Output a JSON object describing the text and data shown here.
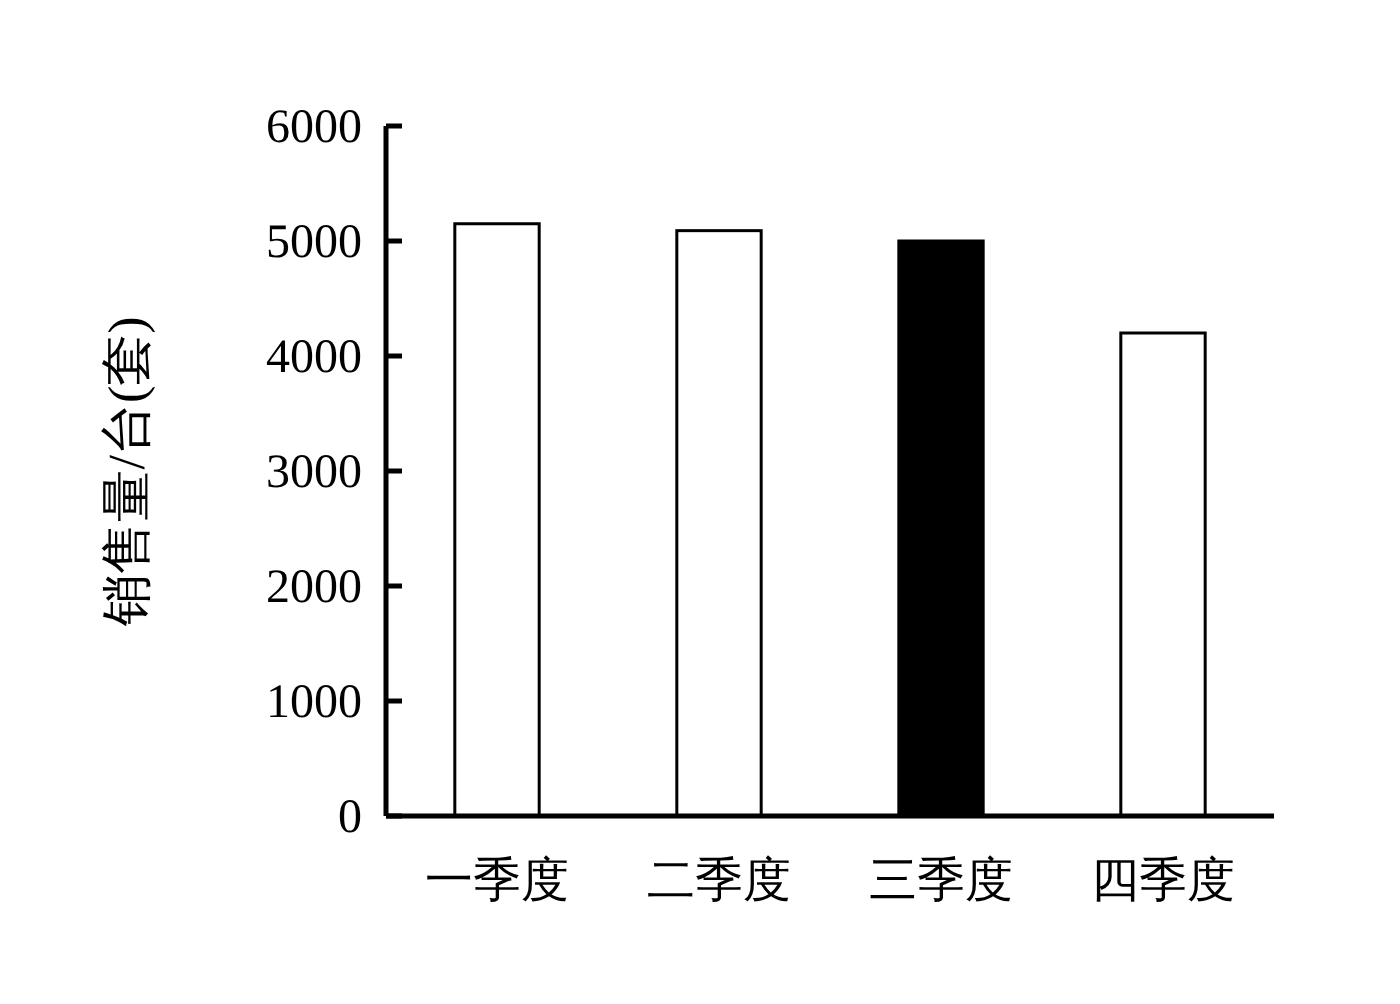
{
  "chart_data": {
    "type": "bar",
    "ylabel": "销售量/台(套)",
    "categories": [
      "一季度",
      "二季度",
      "三季度",
      "四季度"
    ],
    "values": [
      5150,
      5090,
      5000,
      4200
    ],
    "colors": [
      "#ffffff",
      "#ffffff",
      "#000000",
      "#ffffff"
    ],
    "ylim": [
      0,
      6000
    ],
    "yticks": [
      0,
      1000,
      2000,
      3000,
      4000,
      5000,
      6000
    ],
    "grid": false
  }
}
